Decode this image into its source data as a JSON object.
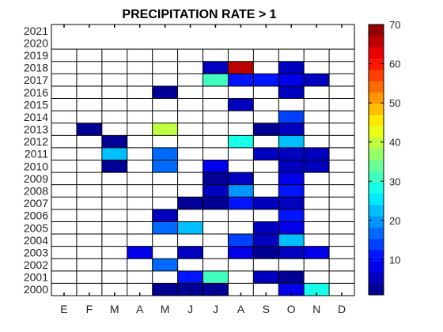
{
  "chart_data": {
    "type": "heatmap",
    "title": "PRECIPITATION RATE > 1",
    "xlabel": "",
    "ylabel": "",
    "x_categories": [
      "E",
      "F",
      "M",
      "A",
      "M",
      "J",
      "J",
      "A",
      "S",
      "O",
      "N",
      "D"
    ],
    "y_categories": [
      2000,
      2001,
      2002,
      2003,
      2004,
      2005,
      2006,
      2007,
      2008,
      2009,
      2010,
      2011,
      2012,
      2013,
      2014,
      2015,
      2016,
      2017,
      2018,
      2019,
      2020,
      2021
    ],
    "value_range": [
      1,
      70
    ],
    "colormap": "jet",
    "colorbar_ticks": [
      10,
      20,
      30,
      40,
      50,
      60,
      70
    ],
    "grid": true,
    "empty_color": "#ffffff",
    "cells": [
      {
        "year": 2000,
        "month": "M",
        "month_index": 4,
        "value": 2
      },
      {
        "year": 2000,
        "month": "J",
        "month_index": 5,
        "value": 3
      },
      {
        "year": 2000,
        "month": "J",
        "month_index": 6,
        "value": 2
      },
      {
        "year": 2000,
        "month": "O",
        "month_index": 9,
        "value": 7
      },
      {
        "year": 2000,
        "month": "N",
        "month_index": 10,
        "value": 28
      },
      {
        "year": 2001,
        "month": "J",
        "month_index": 5,
        "value": 12
      },
      {
        "year": 2001,
        "month": "J",
        "month_index": 6,
        "value": 32
      },
      {
        "year": 2001,
        "month": "S",
        "month_index": 8,
        "value": 6
      },
      {
        "year": 2001,
        "month": "O",
        "month_index": 9,
        "value": 3
      },
      {
        "year": 2002,
        "month": "M",
        "month_index": 4,
        "value": 17
      },
      {
        "year": 2003,
        "month": "A",
        "month_index": 3,
        "value": 7
      },
      {
        "year": 2003,
        "month": "J",
        "month_index": 5,
        "value": 4
      },
      {
        "year": 2003,
        "month": "A",
        "month_index": 7,
        "value": 9
      },
      {
        "year": 2003,
        "month": "S",
        "month_index": 8,
        "value": 3
      },
      {
        "year": 2003,
        "month": "O",
        "month_index": 9,
        "value": 5
      },
      {
        "year": 2003,
        "month": "N",
        "month_index": 10,
        "value": 7
      },
      {
        "year": 2004,
        "month": "A",
        "month_index": 7,
        "value": 15
      },
      {
        "year": 2004,
        "month": "S",
        "month_index": 8,
        "value": 6
      },
      {
        "year": 2004,
        "month": "O",
        "month_index": 9,
        "value": 22
      },
      {
        "year": 2005,
        "month": "M",
        "month_index": 4,
        "value": 17
      },
      {
        "year": 2005,
        "month": "J",
        "month_index": 5,
        "value": 22
      },
      {
        "year": 2005,
        "month": "S",
        "month_index": 8,
        "value": 6
      },
      {
        "year": 2005,
        "month": "O",
        "month_index": 9,
        "value": 7
      },
      {
        "year": 2006,
        "month": "M",
        "month_index": 4,
        "value": 4
      },
      {
        "year": 2006,
        "month": "O",
        "month_index": 9,
        "value": 11
      },
      {
        "year": 2007,
        "month": "J",
        "month_index": 5,
        "value": 3
      },
      {
        "year": 2007,
        "month": "J",
        "month_index": 6,
        "value": 3
      },
      {
        "year": 2007,
        "month": "A",
        "month_index": 7,
        "value": 10
      },
      {
        "year": 2007,
        "month": "S",
        "month_index": 8,
        "value": 4
      },
      {
        "year": 2007,
        "month": "O",
        "month_index": 9,
        "value": 4
      },
      {
        "year": 2008,
        "month": "J",
        "month_index": 6,
        "value": 4
      },
      {
        "year": 2008,
        "month": "A",
        "month_index": 7,
        "value": 19
      },
      {
        "year": 2008,
        "month": "O",
        "month_index": 9,
        "value": 11
      },
      {
        "year": 2009,
        "month": "J",
        "month_index": 6,
        "value": 3
      },
      {
        "year": 2009,
        "month": "A",
        "month_index": 7,
        "value": 4
      },
      {
        "year": 2009,
        "month": "O",
        "month_index": 9,
        "value": 7
      },
      {
        "year": 2010,
        "month": "M",
        "month_index": 2,
        "value": 3
      },
      {
        "year": 2010,
        "month": "M",
        "month_index": 4,
        "value": 17
      },
      {
        "year": 2010,
        "month": "J",
        "month_index": 6,
        "value": 8
      },
      {
        "year": 2010,
        "month": "O",
        "month_index": 9,
        "value": 5
      },
      {
        "year": 2010,
        "month": "N",
        "month_index": 10,
        "value": 5
      },
      {
        "year": 2011,
        "month": "M",
        "month_index": 2,
        "value": 23
      },
      {
        "year": 2011,
        "month": "M",
        "month_index": 4,
        "value": 16
      },
      {
        "year": 2011,
        "month": "S",
        "month_index": 8,
        "value": 4
      },
      {
        "year": 2011,
        "month": "O",
        "month_index": 9,
        "value": 5
      },
      {
        "year": 2011,
        "month": "N",
        "month_index": 10,
        "value": 4
      },
      {
        "year": 2012,
        "month": "M",
        "month_index": 2,
        "value": 3
      },
      {
        "year": 2012,
        "month": "A",
        "month_index": 7,
        "value": 28
      },
      {
        "year": 2012,
        "month": "O",
        "month_index": 9,
        "value": 22
      },
      {
        "year": 2013,
        "month": "F",
        "month_index": 1,
        "value": 3
      },
      {
        "year": 2013,
        "month": "M",
        "month_index": 4,
        "value": 41
      },
      {
        "year": 2013,
        "month": "S",
        "month_index": 8,
        "value": 3
      },
      {
        "year": 2013,
        "month": "O",
        "month_index": 9,
        "value": 4
      },
      {
        "year": 2014,
        "month": "O",
        "month_index": 9,
        "value": 14
      },
      {
        "year": 2015,
        "month": "A",
        "month_index": 7,
        "value": 4
      },
      {
        "year": 2016,
        "month": "M",
        "month_index": 4,
        "value": 3
      },
      {
        "year": 2016,
        "month": "O",
        "month_index": 9,
        "value": 4
      },
      {
        "year": 2017,
        "month": "J",
        "month_index": 6,
        "value": 30
      },
      {
        "year": 2017,
        "month": "A",
        "month_index": 7,
        "value": 12
      },
      {
        "year": 2017,
        "month": "S",
        "month_index": 8,
        "value": 12
      },
      {
        "year": 2017,
        "month": "O",
        "month_index": 9,
        "value": 8
      },
      {
        "year": 2017,
        "month": "N",
        "month_index": 10,
        "value": 5
      },
      {
        "year": 2018,
        "month": "J",
        "month_index": 6,
        "value": 4
      },
      {
        "year": 2018,
        "month": "A",
        "month_index": 7,
        "value": 67
      },
      {
        "year": 2018,
        "month": "O",
        "month_index": 9,
        "value": 5
      }
    ]
  }
}
